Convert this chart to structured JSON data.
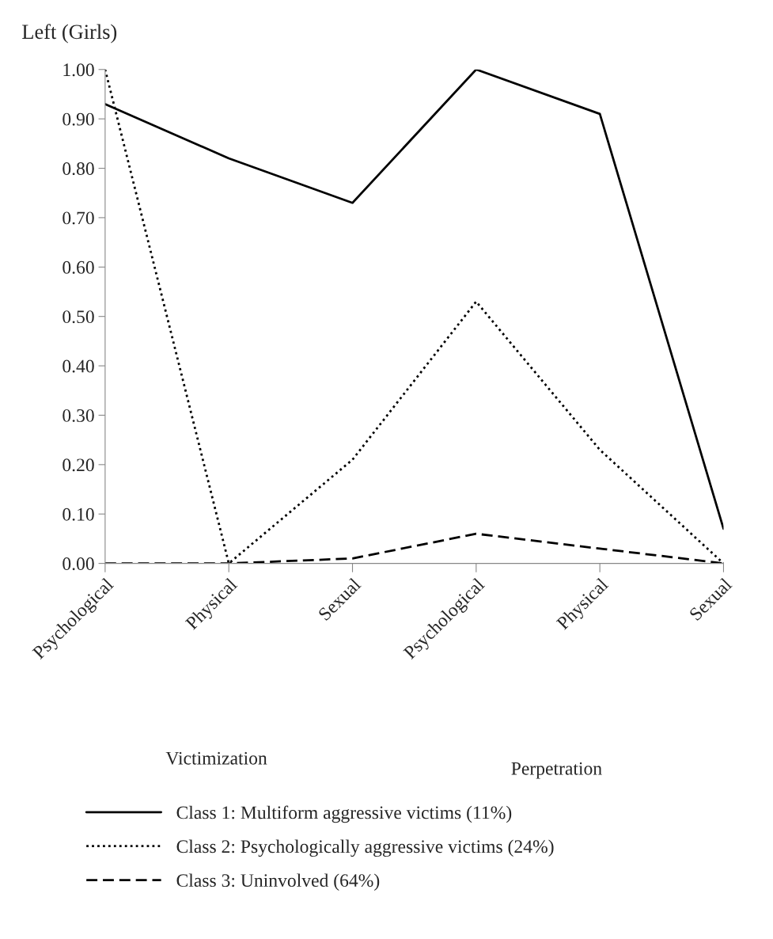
{
  "chart_data": {
    "type": "line",
    "title": "Left (Girls)",
    "categories": [
      "Psychological",
      "Physical",
      "Sexual",
      "Psychological",
      "Physical",
      "Sexual"
    ],
    "series": [
      {
        "name": "Class 1: Multiform aggressive victims (11%)",
        "color": "#000000",
        "line_style": "solid",
        "values": [
          0.93,
          0.82,
          0.73,
          1.0,
          0.91,
          0.07
        ]
      },
      {
        "name": "Class 2: Psychologically aggressive victims (24%)",
        "color": "#000000",
        "line_style": "dotted",
        "values": [
          1.0,
          0.0,
          0.21,
          0.53,
          0.23,
          0.0
        ]
      },
      {
        "name": "Class 3: Uninvolved (64%)",
        "color": "#000000",
        "line_style": "dashed",
        "values": [
          0.0,
          0.0,
          0.01,
          0.06,
          0.03,
          0.0
        ]
      }
    ],
    "ylim": [
      0,
      1
    ],
    "yticks": [
      {
        "value": 0,
        "label": "0.00"
      },
      {
        "value": 0.1,
        "label": "0.10"
      },
      {
        "value": 0.2,
        "label": "0.20"
      },
      {
        "value": 0.3,
        "label": "0.30"
      },
      {
        "value": 0.4,
        "label": "0.40"
      },
      {
        "value": 0.5,
        "label": "0.50"
      },
      {
        "value": 0.6,
        "label": "0.60"
      },
      {
        "value": 0.7,
        "label": "0.70"
      },
      {
        "value": 0.8,
        "label": "0.80"
      },
      {
        "value": 0.9,
        "label": "0.90"
      },
      {
        "value": 1,
        "label": "1.00"
      }
    ],
    "annotations": [
      "Victimization",
      "Perpetration"
    ],
    "grid": false,
    "legend": "bottom",
    "marker": "none"
  }
}
